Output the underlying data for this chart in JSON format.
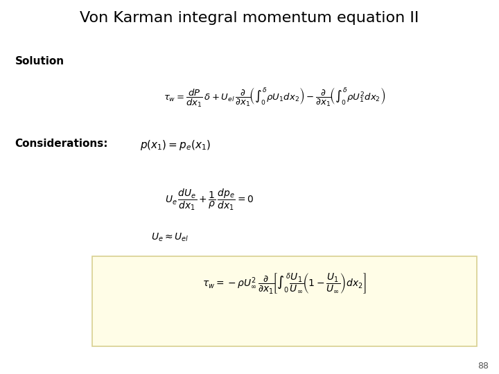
{
  "title": "Von Karman integral momentum equation II",
  "title_fontsize": 16,
  "background_color": "#ffffff",
  "page_number": "88",
  "solution_label": "Solution",
  "considerations_label": "Considerations:",
  "considerations_eq": "$p(x_1) = p_e(x_1)$",
  "eq1": "$\\tau_w = \\dfrac{dP}{dx_1}\\,\\delta + U_{el}\\,\\dfrac{\\partial}{\\partial x_1}\\!\\left(\\int_0^{\\delta}\\rho U_1 dx_2\\right) - \\dfrac{\\partial}{\\partial x_1}\\!\\left(\\int_0^{\\delta}\\rho U_1^2 dx_2\\right)$",
  "eq2": "$U_e\\,\\dfrac{dU_e}{dx_1} + \\dfrac{1}{\\rho}\\,\\dfrac{dp_e}{dx_1} = 0$",
  "eq3": "$U_e \\approx U_{el}$",
  "eq4": "$\\tau_w = -\\rho U_\\infty^2\\,\\dfrac{\\partial}{\\partial x_1}\\!\\left[\\int_0^{\\delta}\\dfrac{U_1}{U_\\infty}\\!\\left(1 - \\dfrac{U_1}{U_\\infty}\\right)dx_2\\right]$",
  "highlight_box_color": "#fffde7",
  "highlight_box_edge": "#d8d090"
}
